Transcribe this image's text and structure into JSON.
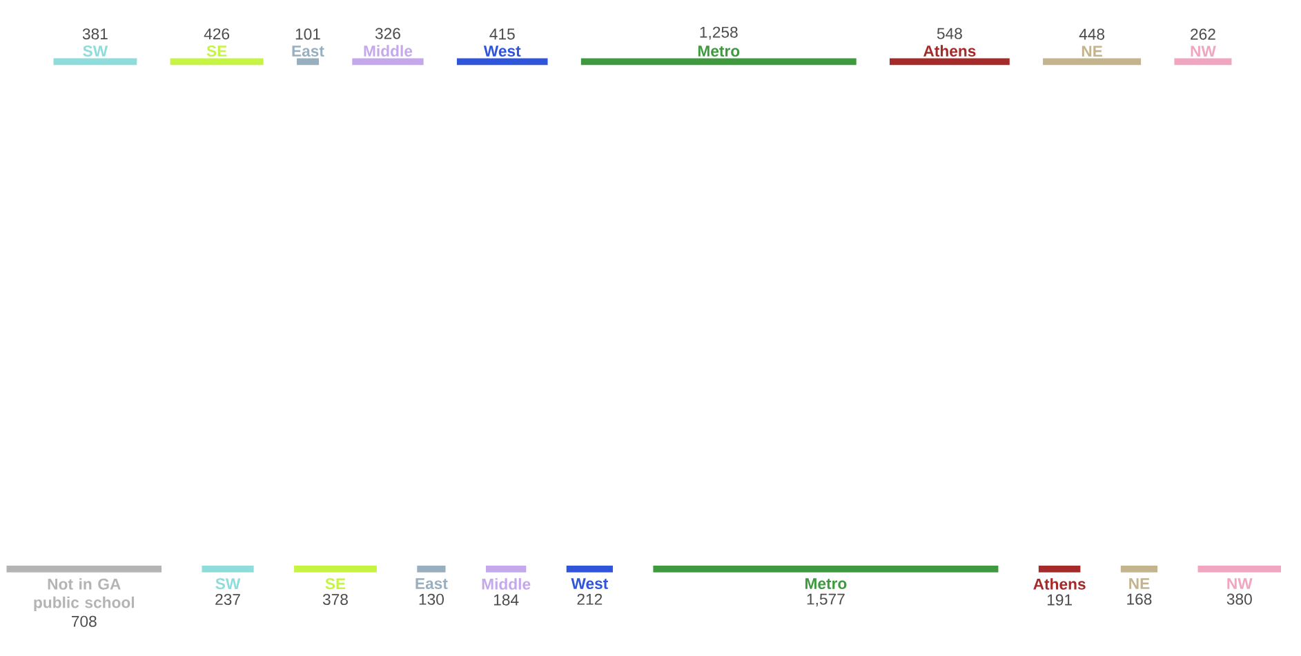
{
  "chart_data": [
    {
      "type": "other",
      "categories": [
        "SW",
        "SE",
        "East",
        "Middle",
        "West",
        "Metro",
        "Athens",
        "NE",
        "NW"
      ],
      "values": [
        381,
        426,
        101,
        326,
        415,
        1258,
        548,
        448,
        262
      ],
      "value_labels": [
        "381",
        "426",
        "101",
        "326",
        "415",
        "1,258",
        "548",
        "448",
        "262"
      ],
      "colors": [
        "#8edcdc",
        "#c5f542",
        "#98afc0",
        "#c5a8ec",
        "#2f55db",
        "#3f9a3f",
        "#a52a2a",
        "#c4b48e",
        "#f0a6c0"
      ]
    },
    {
      "type": "other",
      "categories": [
        "Not in GA public school",
        "SW",
        "SE",
        "East",
        "Middle",
        "West",
        "Metro",
        "Athens",
        "NE",
        "NW"
      ],
      "values": [
        708,
        237,
        378,
        130,
        184,
        212,
        1577,
        191,
        168,
        380
      ],
      "value_labels": [
        "708",
        "237",
        "378",
        "130",
        "184",
        "212",
        "1,577",
        "191",
        "168",
        "380"
      ],
      "colors": [
        "#b4b4b4",
        "#8edcdc",
        "#c5f542",
        "#98afc0",
        "#c5a8ec",
        "#2f55db",
        "#3f9a3f",
        "#a52a2a",
        "#c4b48e",
        "#f0a6c0"
      ]
    }
  ]
}
